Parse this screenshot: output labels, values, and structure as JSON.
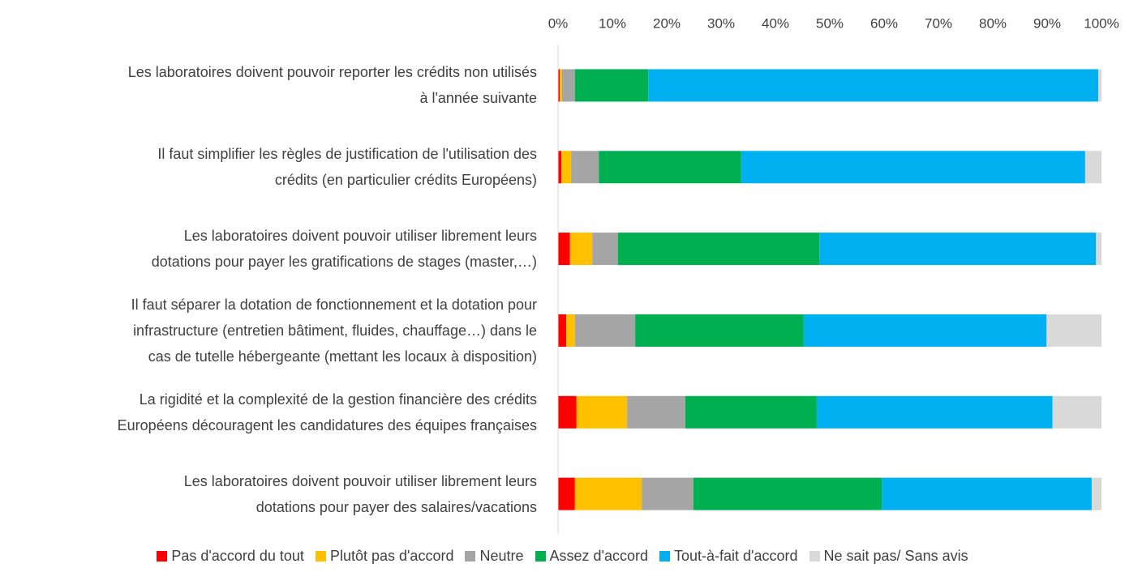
{
  "chart_data": {
    "type": "stacked-bar-horizontal",
    "categories": [
      "Les laboratoires doivent pouvoir reporter les crédits non utilisés\nà l'année suivante",
      "Il faut simplifier les règles de justification de l'utilisation des\ncrédits (en particulier crédits Européens)",
      "Les laboratoires doivent pouvoir utiliser librement leurs\ndotations pour payer les gratifications de stages (master,…)",
      "Il faut séparer la dotation de fonctionnement et la dotation pour\ninfrastructure (entretien bâtiment, fluides, chauffage…) dans le\ncas de tutelle hébergeante (mettant les locaux à disposition)",
      "La rigidité et la complexité de la gestion financière des crédits\nEuropéens découragent les candidatures des équipes françaises",
      "Les laboratoires doivent pouvoir utiliser librement leurs\ndotations pour payer des salaires/vacations"
    ],
    "series": [
      {
        "name": "Pas d'accord du tout",
        "color": "#ff0000",
        "values": [
          0.3,
          0.6,
          2.2,
          1.5,
          3.4,
          3.1
        ]
      },
      {
        "name": "Plutôt pas d'accord",
        "color": "#ffc000",
        "values": [
          0.4,
          1.8,
          4.1,
          1.6,
          9.3,
          12.3
        ]
      },
      {
        "name": "Neutre",
        "color": "#a5a5a5",
        "values": [
          2.4,
          5.1,
          4.7,
          11.1,
          10.7,
          9.5
        ]
      },
      {
        "name": "Assez d'accord",
        "color": "#00b050",
        "values": [
          13.5,
          26.2,
          37.1,
          31.0,
          24.2,
          34.7
        ]
      },
      {
        "name": "Tout-à-fait d'accord",
        "color": "#00b0f0",
        "values": [
          82.8,
          63.3,
          50.9,
          44.7,
          43.4,
          38.6
        ]
      },
      {
        "name": "Ne sait pas/ Sans avis",
        "color": "#d9d9d9",
        "values": [
          0.6,
          3.0,
          1.0,
          10.1,
          9.0,
          1.8
        ]
      }
    ],
    "xlim": [
      0,
      100
    ],
    "xticks": [
      {
        "value": 0,
        "label": "0%"
      },
      {
        "value": 10,
        "label": "10%"
      },
      {
        "value": 20,
        "label": "20%"
      },
      {
        "value": 30,
        "label": "30%"
      },
      {
        "value": 40,
        "label": "40%"
      },
      {
        "value": 50,
        "label": "50%"
      },
      {
        "value": 60,
        "label": "60%"
      },
      {
        "value": 70,
        "label": "70%"
      },
      {
        "value": 80,
        "label": "80%"
      },
      {
        "value": 90,
        "label": "90%"
      },
      {
        "value": 100,
        "label": "100%"
      }
    ],
    "grid": false,
    "legend": "bottom"
  }
}
